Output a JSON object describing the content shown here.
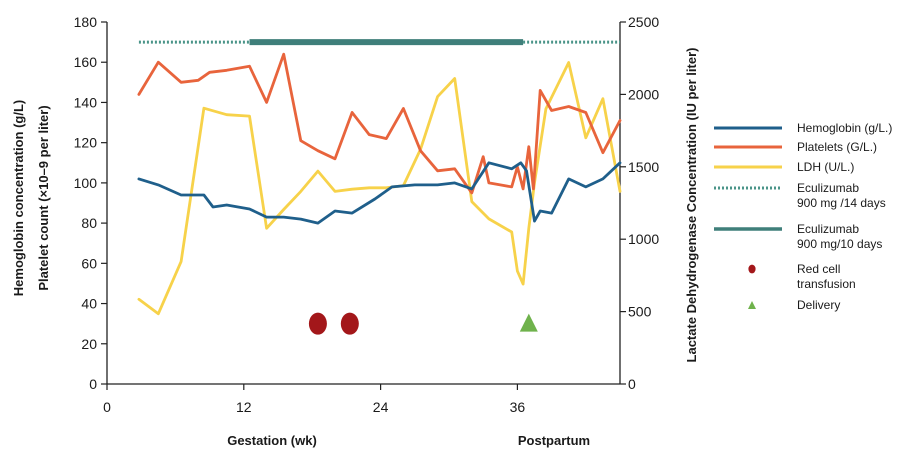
{
  "chart_data": {
    "type": "line",
    "ylabel_left_line1": "Hemoglobin concentration (g/L)",
    "ylabel_left_line2": "Platelet count (×10–9 per liter)",
    "ylabel_right": "Lactate Dehydrogenase Concentration (IU per liter)",
    "xlabel": "Gestation (wk)",
    "xlabel_post": "Postpartum",
    "xlim": [
      0,
      45
    ],
    "ylim_left": [
      0,
      180
    ],
    "ylim_right": [
      0,
      2500
    ],
    "x_ticks": [
      "0",
      "12",
      "24",
      "36"
    ],
    "y_left_ticks": [
      "0",
      "20",
      "40",
      "60",
      "80",
      "100",
      "120",
      "140",
      "160",
      "180"
    ],
    "y_right_ticks": [
      "0",
      "500",
      "1000",
      "1500",
      "2000",
      "2500"
    ],
    "series": [
      {
        "name": "Hemoglobin (g/L.)",
        "axis": "left",
        "color": "#1f5f8b",
        "x": [
          2.8,
          4.5,
          6.5,
          8.5,
          9.3,
          10.5,
          12.5,
          14.0,
          15.5,
          17.0,
          18.5,
          20.0,
          21.5,
          23.5,
          25.0,
          27.0,
          29.0,
          30.5,
          32.0,
          33.5,
          35.5,
          36.3,
          36.8,
          37.5,
          38.0,
          39.0,
          40.5,
          42.0,
          43.5,
          45.0
        ],
        "y": [
          102,
          99,
          94,
          94,
          88,
          89,
          87,
          83,
          83,
          82,
          80,
          86,
          85,
          92,
          98,
          99,
          99,
          100,
          97,
          110,
          107,
          110,
          106,
          81,
          86,
          85,
          102,
          98,
          102,
          110
        ]
      },
      {
        "name": "Platelets (G/L.)",
        "axis": "left",
        "color": "#e8643c",
        "x": [
          2.8,
          4.5,
          6.5,
          8.0,
          9.0,
          10.5,
          12.5,
          14.0,
          15.5,
          17.0,
          18.5,
          20.0,
          21.5,
          23.0,
          24.5,
          26.0,
          27.5,
          29.0,
          30.5,
          32.0,
          33.0,
          33.5,
          34.5,
          35.5,
          36.0,
          36.5,
          37.0,
          37.4,
          38.0,
          39.0,
          40.5,
          42.0,
          43.5,
          45.0
        ],
        "y": [
          144,
          160,
          150,
          151,
          155,
          156,
          158,
          140,
          164,
          121,
          116,
          112,
          135,
          124,
          122,
          137,
          116,
          106,
          107,
          95,
          113,
          100,
          99,
          98,
          108,
          97,
          118,
          97,
          146,
          136,
          138,
          135,
          115,
          131
        ]
      },
      {
        "name": "LDH (U/L.)",
        "axis": "right",
        "color": "#f7d24a",
        "x": [
          2.8,
          4.5,
          6.5,
          8.5,
          10.5,
          12.5,
          14.0,
          15.5,
          17.0,
          18.5,
          20.0,
          21.5,
          23.0,
          24.5,
          26.0,
          27.5,
          29.0,
          30.5,
          32.0,
          33.5,
          35.5,
          36.0,
          36.5,
          37.0,
          37.5,
          38.5,
          40.5,
          42.0,
          43.5,
          45.0
        ],
        "y": [
          585,
          485,
          845,
          1905,
          1860,
          1850,
          1075,
          1205,
          1330,
          1470,
          1330,
          1345,
          1355,
          1355,
          1370,
          1620,
          1985,
          2110,
          1260,
          1140,
          1050,
          780,
          690,
          1075,
          1390,
          1900,
          2220,
          1700,
          1970,
          1330
        ]
      }
    ],
    "eculizumab_14": {
      "name": "Eculizumab\n900 mg /14 days",
      "legend_line1": "Eculizumab",
      "legend_line2": "900 mg /14 days",
      "color": "#4a9488",
      "segments": [
        [
          2.8,
          12.5
        ],
        [
          36.5,
          45.0
        ]
      ],
      "y": 170
    },
    "eculizumab_10": {
      "name": "Eculizumab\n900 mg/10 days",
      "legend_line1": "Eculizumab",
      "legend_line2": "900 mg/10 days",
      "color": "#3f7f7a",
      "segments": [
        [
          12.5,
          36.5
        ]
      ],
      "y": 170
    },
    "transfusion": {
      "legend_line1": "Red cell",
      "legend_line2": "transfusion",
      "color": "#a3171a",
      "x": [
        18.5,
        21.3
      ],
      "y": 30
    },
    "delivery": {
      "legend": "Delivery",
      "color": "#6fb24c",
      "x": [
        37.0
      ],
      "y": 30
    }
  }
}
